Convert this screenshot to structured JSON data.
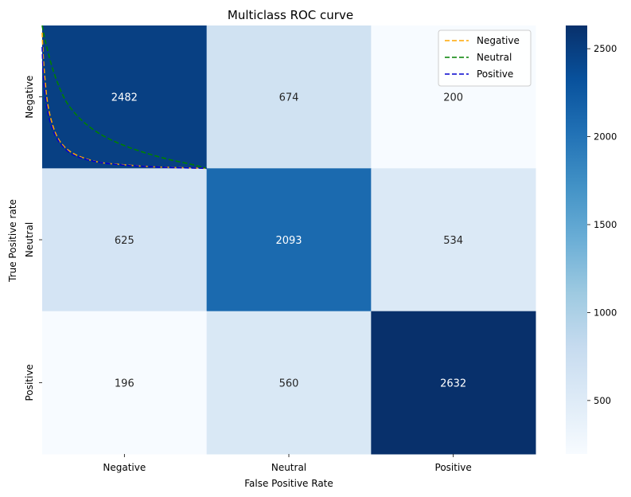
{
  "chart_data": {
    "type": "heatmap",
    "title": "Multiclass ROC curve",
    "xlabel": "False Positive Rate",
    "ylabel": "True Positive rate",
    "x_categories": [
      "Negative",
      "Neutral",
      "Positive"
    ],
    "y_categories": [
      "Negative",
      "Neutral",
      "Positive"
    ],
    "matrix": [
      [
        2482,
        674,
        200
      ],
      [
        625,
        2093,
        534
      ],
      [
        196,
        560,
        2632
      ]
    ],
    "colormap": "Blues",
    "colorbar": {
      "ticks": [
        500,
        1000,
        1500,
        2000,
        2500
      ],
      "range": [
        196,
        2632
      ]
    },
    "roc_overlay": {
      "x_range": [
        0,
        1
      ],
      "y_range": [
        0,
        1
      ],
      "series": [
        {
          "name": "Negative",
          "color": "#FFA500",
          "dash": "dashed",
          "points": [
            [
              0,
              0.95
            ],
            [
              0.005,
              0.82
            ],
            [
              0.015,
              0.65
            ],
            [
              0.03,
              0.48
            ],
            [
              0.05,
              0.36
            ],
            [
              0.08,
              0.25
            ],
            [
              0.12,
              0.17
            ],
            [
              0.18,
              0.11
            ],
            [
              0.26,
              0.07
            ],
            [
              0.36,
              0.04
            ],
            [
              0.5,
              0.025
            ],
            [
              0.65,
              0.012
            ],
            [
              0.8,
              0.006
            ],
            [
              1.0,
              0.0
            ]
          ]
        },
        {
          "name": "Neutral",
          "color": "#008000",
          "dash": "dashed",
          "points": [
            [
              0,
              1.0
            ],
            [
              0.01,
              0.94
            ],
            [
              0.03,
              0.84
            ],
            [
              0.06,
              0.71
            ],
            [
              0.1,
              0.58
            ],
            [
              0.15,
              0.46
            ],
            [
              0.22,
              0.36
            ],
            [
              0.3,
              0.28
            ],
            [
              0.4,
              0.21
            ],
            [
              0.52,
              0.15
            ],
            [
              0.65,
              0.1
            ],
            [
              0.78,
              0.06
            ],
            [
              0.9,
              0.03
            ],
            [
              1.0,
              0.0
            ]
          ]
        },
        {
          "name": "Positive",
          "color": "#0000CD",
          "dash": "dashed",
          "points": [
            [
              0,
              0.85
            ],
            [
              0.005,
              0.7
            ],
            [
              0.015,
              0.55
            ],
            [
              0.03,
              0.42
            ],
            [
              0.05,
              0.32
            ],
            [
              0.08,
              0.23
            ],
            [
              0.12,
              0.16
            ],
            [
              0.18,
              0.1
            ],
            [
              0.26,
              0.065
            ],
            [
              0.36,
              0.04
            ],
            [
              0.5,
              0.022
            ],
            [
              0.65,
              0.012
            ],
            [
              0.8,
              0.005
            ],
            [
              1.0,
              0.0
            ]
          ]
        }
      ]
    },
    "legend": {
      "position": "upper-right",
      "entries": [
        "Negative",
        "Neutral",
        "Positive"
      ]
    }
  }
}
